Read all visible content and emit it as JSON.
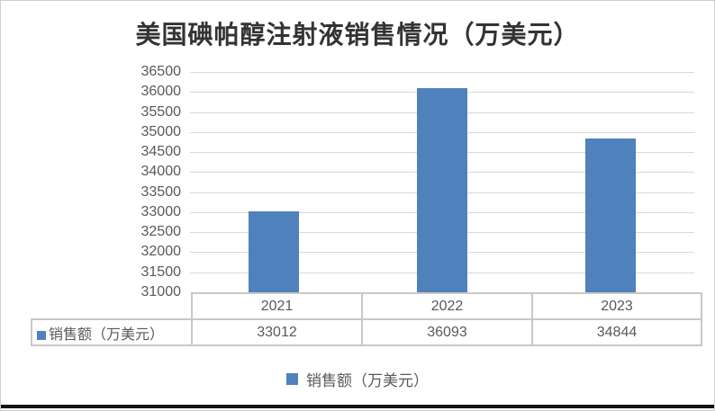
{
  "chart_data": {
    "type": "bar",
    "title": "美国碘帕醇注射液销售情况（万美元）",
    "categories": [
      "2021",
      "2022",
      "2023"
    ],
    "series": [
      {
        "name": "销售额（万美元）",
        "values": [
          33012,
          36093,
          34844
        ]
      }
    ],
    "xlabel": "",
    "ylabel": "",
    "ylim": [
      31000,
      36500
    ],
    "yticks": [
      31000,
      31500,
      32000,
      32500,
      33000,
      33500,
      34000,
      34500,
      35000,
      35500,
      36000,
      36500
    ],
    "grid": true,
    "legend_position": "bottom",
    "data_table_shown": true
  },
  "data_table": {
    "row_header": "销售额（万美元）",
    "columns": [
      "2021",
      "2022",
      "2023"
    ],
    "values": [
      "33012",
      "36093",
      "34844"
    ]
  },
  "legend": {
    "label": "销售额（万美元）"
  },
  "colors": {
    "bar": "#4F81BD",
    "gridline": "#D9D9D9",
    "table_border": "#C8C8C8",
    "axis_text": "#595959",
    "title_text": "#333333",
    "bottom_rule": "#141414"
  }
}
